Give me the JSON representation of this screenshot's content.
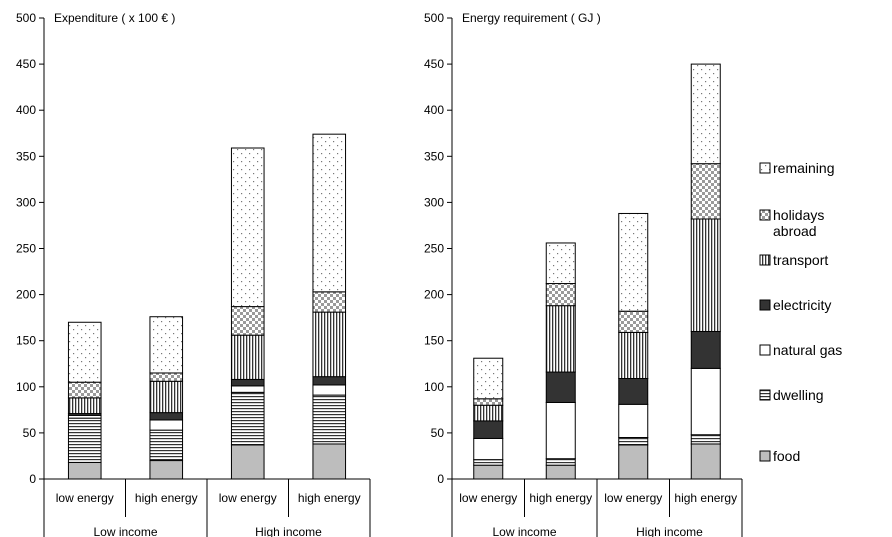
{
  "chart_data": [
    {
      "type": "bar",
      "stacked": true,
      "title": "Expenditure ( x 100  € )",
      "ylim": [
        0,
        500
      ],
      "yticks": [
        0,
        50,
        100,
        150,
        200,
        250,
        300,
        350,
        400,
        450,
        500
      ],
      "categories": [
        "low energy",
        "high energy",
        "low energy",
        "high energy"
      ],
      "groups": [
        {
          "label": "Low income",
          "span": 2
        },
        {
          "label": "High income",
          "span": 2
        }
      ],
      "series": [
        {
          "name": "food",
          "values": [
            18,
            20,
            37,
            38
          ]
        },
        {
          "name": "dwelling",
          "values": [
            48,
            33,
            57,
            53
          ]
        },
        {
          "name": "natural gas",
          "values": [
            3,
            11,
            7,
            11
          ]
        },
        {
          "name": "electricity",
          "values": [
            2,
            8,
            7,
            9
          ]
        },
        {
          "name": "transport",
          "values": [
            17,
            34,
            48,
            70
          ]
        },
        {
          "name": "holidays abroad",
          "values": [
            17,
            9,
            31,
            22
          ]
        },
        {
          "name": "remaining",
          "values": [
            65,
            61,
            172,
            171
          ]
        }
      ]
    },
    {
      "type": "bar",
      "stacked": true,
      "title": "Energy requirement ( GJ )",
      "ylim": [
        0,
        500
      ],
      "yticks": [
        0,
        50,
        100,
        150,
        200,
        250,
        300,
        350,
        400,
        450,
        500
      ],
      "categories": [
        "low energy",
        "high energy",
        "low energy",
        "high energy"
      ],
      "groups": [
        {
          "label": "Low income",
          "span": 2
        },
        {
          "label": "High income",
          "span": 2
        }
      ],
      "series": [
        {
          "name": "food",
          "values": [
            15,
            15,
            37,
            38
          ]
        },
        {
          "name": "dwelling",
          "values": [
            6,
            7,
            8,
            10
          ]
        },
        {
          "name": "natural gas",
          "values": [
            23,
            61,
            36,
            72
          ]
        },
        {
          "name": "electricity",
          "values": [
            19,
            33,
            28,
            40
          ]
        },
        {
          "name": "transport",
          "values": [
            17,
            72,
            50,
            122
          ]
        },
        {
          "name": "holidays abroad",
          "values": [
            7,
            24,
            23,
            60
          ]
        },
        {
          "name": "remaining",
          "values": [
            44,
            44,
            106,
            108
          ]
        }
      ]
    }
  ],
  "legend": {
    "placement": "right",
    "items": [
      {
        "label": "remaining",
        "pattern": "dots"
      },
      {
        "label": "holidays",
        "label2": "abroad",
        "pattern": "checker"
      },
      {
        "label": "transport",
        "pattern": "vlines"
      },
      {
        "label": "electricity",
        "pattern": "solid-dark"
      },
      {
        "label": "natural gas",
        "pattern": "white"
      },
      {
        "label": "dwelling",
        "pattern": "hlines"
      },
      {
        "label": "food",
        "pattern": "solid-gray"
      }
    ]
  }
}
